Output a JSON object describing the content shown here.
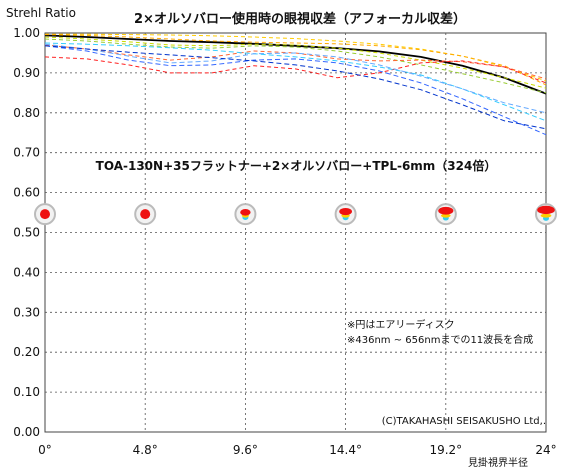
{
  "chart_data": {
    "type": "line",
    "title": "2×オルソバロー使用時の眼視収差（アフォーカル収差）",
    "subtitle": "TOA-130N+35フラットナー+2×オルソバロー+TPL-6mm（324倍）",
    "ylabel": "Strehl Ratio",
    "xlabel": "見掛視界半径",
    "notes": [
      "※円はエアリーディスク",
      "※436nm ~ 656nmまでの11波長を合成"
    ],
    "credit": "(C)TAKAHASHI SEISAKUSHO Ltd,.",
    "ylim": [
      0,
      1
    ],
    "xlim": [
      0,
      24
    ],
    "x_ticks": [
      0,
      4.8,
      9.6,
      14.4,
      19.2,
      24
    ],
    "x_tick_labels": [
      "0°",
      "4.8°",
      "9.6°",
      "14.4°",
      "19.2°",
      "24°"
    ],
    "y_ticks": [
      0,
      0.1,
      0.2,
      0.3,
      0.4,
      0.5,
      0.6,
      0.7,
      0.8,
      0.9,
      1.0
    ],
    "y_tick_labels": [
      "0.00",
      "0.10",
      "0.20",
      "0.30",
      "0.40",
      "0.50",
      "0.60",
      "0.70",
      "0.80",
      "0.90",
      "1.00"
    ],
    "grid": true,
    "series": [
      {
        "color": "#000000",
        "dash": "",
        "width": 1.8,
        "x": [
          0,
          2,
          4,
          6,
          8,
          10,
          12,
          14,
          16,
          18,
          20,
          22,
          24
        ],
        "values": [
          0.994,
          0.99,
          0.985,
          0.98,
          0.977,
          0.973,
          0.968,
          0.962,
          0.954,
          0.94,
          0.918,
          0.888,
          0.848
        ]
      },
      {
        "color": "#ffcc00",
        "dash": "4,3",
        "width": 1,
        "x": [
          0,
          2,
          4,
          6,
          8,
          10,
          12,
          14,
          16,
          18,
          20,
          22,
          24
        ],
        "values": [
          0.997,
          0.997,
          0.996,
          0.995,
          0.993,
          0.99,
          0.986,
          0.98,
          0.972,
          0.96,
          0.942,
          0.915,
          0.88
        ]
      },
      {
        "color": "#ffaa00",
        "dash": "4,3",
        "width": 1,
        "x": [
          0,
          2,
          4,
          6,
          8,
          10,
          12,
          14,
          16,
          18,
          20,
          22,
          24
        ],
        "values": [
          0.996,
          0.994,
          0.99,
          0.985,
          0.98,
          0.977,
          0.975,
          0.973,
          0.968,
          0.958,
          0.942,
          0.918,
          0.87
        ]
      },
      {
        "color": "#ccdd00",
        "dash": "4,3",
        "width": 1,
        "x": [
          0,
          2,
          4,
          6,
          8,
          10,
          12,
          14,
          16,
          18,
          20,
          22,
          24
        ],
        "values": [
          0.99,
          0.985,
          0.978,
          0.97,
          0.968,
          0.972,
          0.97,
          0.962,
          0.95,
          0.932,
          0.912,
          0.888,
          0.862
        ]
      },
      {
        "color": "#99cc33",
        "dash": "4,3",
        "width": 1,
        "x": [
          0,
          2,
          4,
          6,
          8,
          10,
          12,
          14,
          16,
          18,
          20,
          22,
          24
        ],
        "values": [
          0.985,
          0.98,
          0.972,
          0.965,
          0.962,
          0.968,
          0.965,
          0.955,
          0.94,
          0.92,
          0.898,
          0.875,
          0.85
        ]
      },
      {
        "color": "#ff6633",
        "dash": "4,3",
        "width": 1,
        "x": [
          0,
          2,
          4,
          6,
          8,
          10,
          12,
          14,
          16,
          18,
          20,
          22,
          24
        ],
        "values": [
          0.97,
          0.96,
          0.945,
          0.932,
          0.94,
          0.955,
          0.95,
          0.935,
          0.93,
          0.932,
          0.928,
          0.915,
          0.885
        ]
      },
      {
        "color": "#ff2222",
        "dash": "4,3",
        "width": 1,
        "x": [
          0,
          2,
          4,
          6,
          8,
          10,
          12,
          14,
          16,
          18,
          20,
          22,
          24
        ],
        "values": [
          0.94,
          0.935,
          0.92,
          0.9,
          0.9,
          0.918,
          0.91,
          0.888,
          0.9,
          0.925,
          0.93,
          0.915,
          0.875
        ]
      },
      {
        "color": "#33ccff",
        "dash": "5,3",
        "width": 1,
        "x": [
          0,
          2,
          4,
          6,
          8,
          10,
          12,
          14,
          16,
          18,
          20,
          22,
          24
        ],
        "values": [
          0.975,
          0.972,
          0.968,
          0.963,
          0.957,
          0.948,
          0.94,
          0.93,
          0.915,
          0.895,
          0.86,
          0.82,
          0.78
        ]
      },
      {
        "color": "#66aaff",
        "dash": "5,3",
        "width": 1,
        "x": [
          0,
          2,
          4,
          6,
          8,
          10,
          12,
          14,
          16,
          18,
          20,
          22,
          24
        ],
        "values": [
          0.972,
          0.96,
          0.942,
          0.925,
          0.93,
          0.948,
          0.95,
          0.94,
          0.92,
          0.892,
          0.86,
          0.825,
          0.8
        ]
      },
      {
        "color": "#3366ff",
        "dash": "5,3",
        "width": 1,
        "x": [
          0,
          2,
          4,
          6,
          8,
          10,
          12,
          14,
          16,
          18,
          20,
          22,
          24
        ],
        "values": [
          0.968,
          0.955,
          0.932,
          0.918,
          0.92,
          0.932,
          0.935,
          0.925,
          0.905,
          0.875,
          0.835,
          0.79,
          0.745
        ]
      },
      {
        "color": "#0033cc",
        "dash": "5,3",
        "width": 1,
        "x": [
          0,
          2,
          4,
          6,
          8,
          10,
          12,
          14,
          16,
          18,
          20,
          22,
          24
        ],
        "values": [
          0.968,
          0.96,
          0.952,
          0.945,
          0.938,
          0.93,
          0.92,
          0.905,
          0.885,
          0.858,
          0.82,
          0.78,
          0.76
        ]
      }
    ],
    "spots": [
      {
        "x": 0,
        "level": 0.546,
        "type": "dot"
      },
      {
        "x": 4.8,
        "level": 0.546,
        "type": "dot"
      },
      {
        "x": 9.6,
        "level": 0.546,
        "type": "smear1"
      },
      {
        "x": 14.4,
        "level": 0.546,
        "type": "smear2"
      },
      {
        "x": 19.2,
        "level": 0.546,
        "type": "smear3"
      },
      {
        "x": 24,
        "level": 0.546,
        "type": "smear4"
      }
    ]
  }
}
